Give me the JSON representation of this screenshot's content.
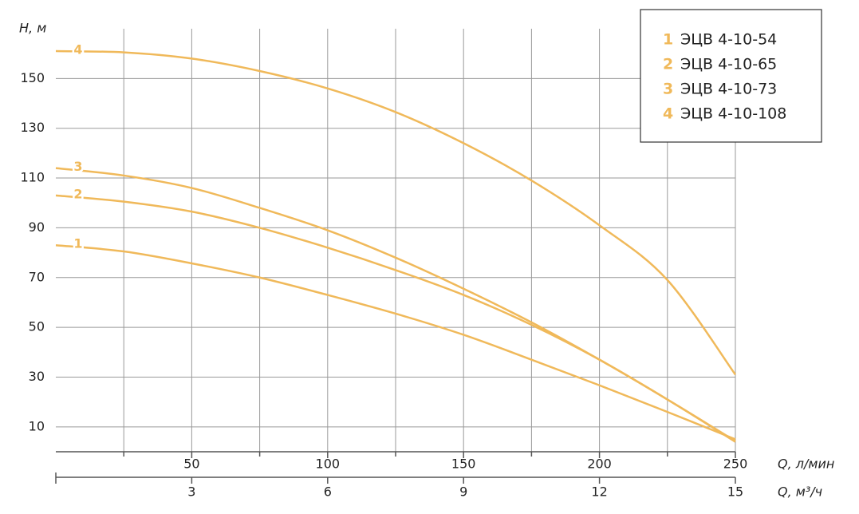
{
  "chart_data": {
    "type": "line",
    "y_label": "H, м",
    "x_label": "Q, л/мин",
    "x2_label": "Q, м³/ч",
    "x": [
      0,
      25,
      50,
      75,
      100,
      125,
      150,
      175,
      200,
      225,
      250
    ],
    "series": [
      {
        "name": "ЭЦВ 4-10-54",
        "label": "1",
        "color": "#f0b95a",
        "values": [
          83,
          80.5,
          75.7,
          70,
          63,
          55.5,
          47,
          37,
          26.7,
          16,
          5
        ]
      },
      {
        "name": "ЭЦВ 4-10-65",
        "label": "2",
        "color": "#f0b95a",
        "values": [
          103,
          100.5,
          96.5,
          90,
          82,
          73,
          63,
          51,
          37,
          21,
          4
        ]
      },
      {
        "name": "ЭЦВ 4-10-73",
        "label": "3",
        "color": "#f0b95a",
        "values": [
          114,
          111,
          106,
          98,
          89,
          78,
          65.5,
          52,
          37,
          21,
          4.3
        ]
      },
      {
        "name": "ЭЦВ 4-10-108",
        "label": "4",
        "color": "#f0b95a",
        "values": [
          161,
          160.5,
          158,
          153,
          146,
          136.5,
          124,
          109,
          91,
          69,
          31
        ]
      }
    ],
    "xlim": [
      0,
      250
    ],
    "xticks": [
      50,
      100,
      150,
      200,
      250
    ],
    "xminor": [
      25,
      75,
      125,
      175,
      225
    ],
    "x2lim": [
      0,
      15
    ],
    "x2ticks": [
      3,
      6,
      9,
      12,
      15
    ],
    "ylim": [
      0,
      170
    ],
    "yticks": [
      10,
      30,
      50,
      70,
      90,
      110,
      130,
      150
    ],
    "grid": true,
    "legend": "upper right"
  }
}
